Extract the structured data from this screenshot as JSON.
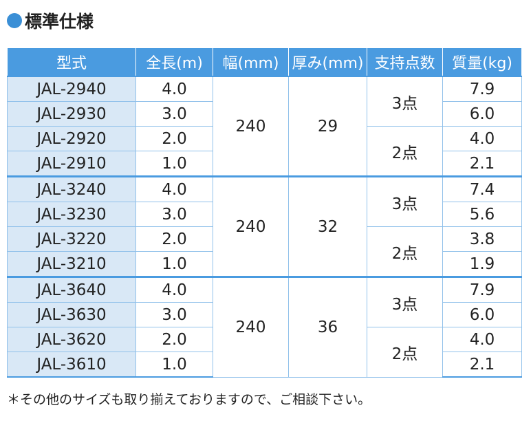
{
  "title": "標準仕様",
  "headers": [
    "型式",
    "全長(m)",
    "幅(mm)",
    "厚み(mm)",
    "支持点数",
    "質量(kg)"
  ],
  "groups": [
    {
      "width": "240",
      "thickness": "29",
      "rows": [
        {
          "model": "JAL-2940",
          "length": "4.0",
          "mass": "7.9"
        },
        {
          "model": "JAL-2930",
          "length": "3.0",
          "mass": "6.0"
        },
        {
          "model": "JAL-2920",
          "length": "2.0",
          "mass": "4.0"
        },
        {
          "model": "JAL-2910",
          "length": "1.0",
          "mass": "2.1"
        }
      ],
      "supports": [
        "3点",
        "2点"
      ]
    },
    {
      "width": "240",
      "thickness": "32",
      "rows": [
        {
          "model": "JAL-3240",
          "length": "4.0",
          "mass": "7.4"
        },
        {
          "model": "JAL-3230",
          "length": "3.0",
          "mass": "5.6"
        },
        {
          "model": "JAL-3220",
          "length": "2.0",
          "mass": "3.8"
        },
        {
          "model": "JAL-3210",
          "length": "1.0",
          "mass": "1.9"
        }
      ],
      "supports": [
        "3点",
        "2点"
      ]
    },
    {
      "width": "240",
      "thickness": "36",
      "rows": [
        {
          "model": "JAL-3640",
          "length": "4.0",
          "mass": "7.9"
        },
        {
          "model": "JAL-3630",
          "length": "3.0",
          "mass": "6.0"
        },
        {
          "model": "JAL-3620",
          "length": "2.0",
          "mass": "4.0"
        },
        {
          "model": "JAL-3610",
          "length": "1.0",
          "mass": "2.1"
        }
      ],
      "supports": [
        "3点",
        "2点"
      ]
    }
  ],
  "note": "＊その他のサイズも取り揃えておりますので、ご相談下さい。",
  "colors": {
    "header": "#4a9be0",
    "model_bg": "#d9e8f6",
    "border": "#8fc0ea",
    "dot": "#3a8fd6"
  }
}
